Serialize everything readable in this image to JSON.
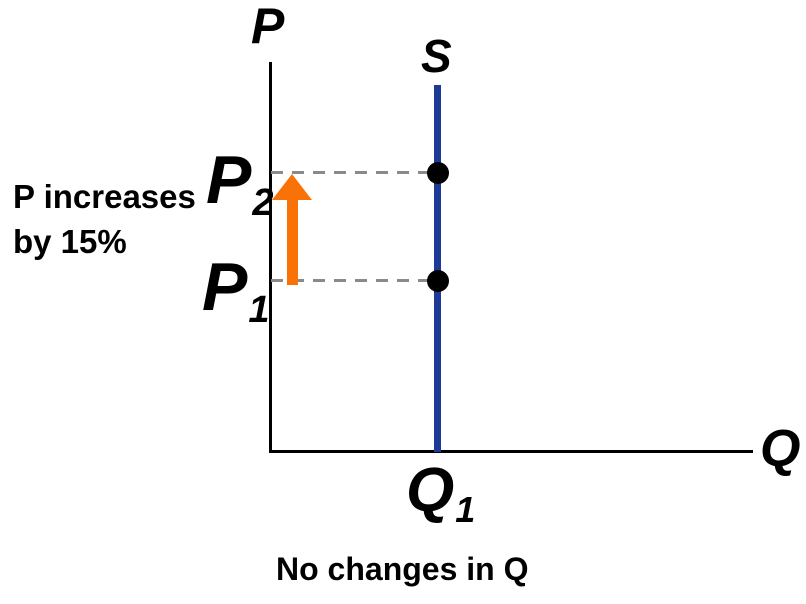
{
  "figure": {
    "y_axis_label": "P",
    "x_axis_label": "Q",
    "supply_label": "S",
    "p2": {
      "main": "P",
      "sub": "2"
    },
    "p1": {
      "main": "P",
      "sub": "1"
    },
    "q1": {
      "main": "Q",
      "sub": "1"
    },
    "annotation": {
      "line1": "P increases",
      "line2": "by 15%"
    },
    "caption": "No changes in Q",
    "colors": {
      "supply_line": "#1C3A96",
      "arrow": "#F97208",
      "dashed_guide": "#8A8A8A",
      "axis": "#000000",
      "point": "#000000",
      "text": "#000000",
      "background": "#FFFFFF"
    }
  }
}
